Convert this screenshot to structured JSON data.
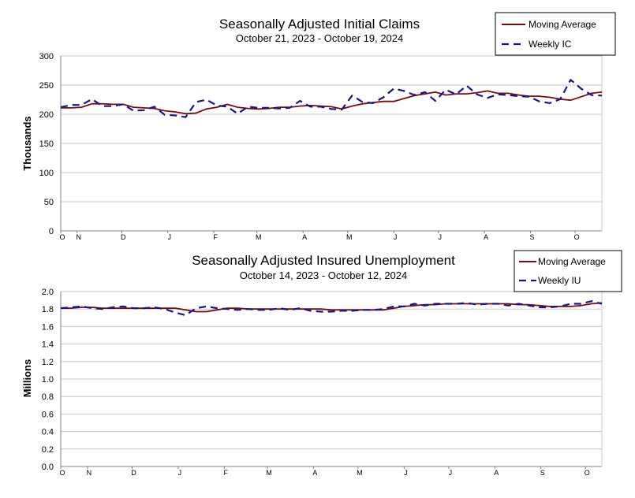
{
  "colors": {
    "moving_average": "#7a0c0c",
    "weekly": "#15158c",
    "grid": "#c8c8c8",
    "axis": "#808080",
    "legend_border": "#000000"
  },
  "chart_data": [
    {
      "type": "line",
      "title": "Seasonally Adjusted Initial Claims",
      "subtitle": "October 21, 2023 - October 19, 2024",
      "xlabel": "",
      "ylabel": "Thousands",
      "ylim": [
        0,
        300
      ],
      "yticks": [
        "0",
        "50",
        "100",
        "150",
        "200",
        "250",
        "300"
      ],
      "ytick_values": [
        0,
        50,
        100,
        150,
        200,
        250,
        300
      ],
      "x_start_date": "2023-10-21",
      "x_end_date": "2024-10-19",
      "xtick_labels": [
        "O",
        "N",
        "D",
        "J",
        "F",
        "M",
        "A",
        "M",
        "J",
        "J",
        "A",
        "S",
        "O"
      ],
      "xtick_dates": [
        "2023-10-21",
        "2023-11-01",
        "2023-12-01",
        "2024-01-01",
        "2024-02-01",
        "2024-03-01",
        "2024-04-01",
        "2024-05-01",
        "2024-06-01",
        "2024-07-01",
        "2024-08-01",
        "2024-09-01",
        "2024-10-01"
      ],
      "grid": true,
      "legend_position": "top-right",
      "series": [
        {
          "name": "Moving Average",
          "style": "solid",
          "values": [
            211,
            211,
            212,
            218,
            218,
            217,
            217,
            212,
            211,
            210,
            206,
            204,
            201,
            202,
            209,
            212,
            217,
            212,
            210,
            209,
            210,
            212,
            212,
            214,
            215,
            214,
            213,
            209,
            214,
            218,
            220,
            222,
            222,
            227,
            232,
            235,
            238,
            233,
            235,
            235,
            237,
            240,
            236,
            236,
            233,
            231,
            231,
            229,
            226,
            224,
            230,
            236,
            238
          ]
        },
        {
          "name": "Weekly IC",
          "style": "dashed",
          "values": [
            212,
            216,
            216,
            226,
            214,
            214,
            217,
            206,
            207,
            213,
            199,
            198,
            195,
            221,
            225,
            215,
            213,
            201,
            213,
            211,
            211,
            210,
            211,
            223,
            213,
            213,
            209,
            208,
            232,
            221,
            219,
            229,
            244,
            240,
            233,
            238,
            223,
            242,
            234,
            249,
            234,
            228,
            234,
            233,
            231,
            230,
            222,
            219,
            226,
            259,
            244,
            233,
            232
          ]
        }
      ]
    },
    {
      "type": "line",
      "title": "Seasonally Adjusted Insured Unemployment",
      "subtitle": "October 14, 2023 - October 12, 2024",
      "xlabel": "",
      "ylabel": "Millions",
      "ylim": [
        0.0,
        2.0
      ],
      "yticks": [
        "0.0",
        "0.2",
        "0.4",
        "0.6",
        "0.8",
        "1.0",
        "1.2",
        "1.4",
        "1.6",
        "1.8",
        "2.0"
      ],
      "ytick_values": [
        0.0,
        0.2,
        0.4,
        0.6,
        0.8,
        1.0,
        1.2,
        1.4,
        1.6,
        1.8,
        2.0
      ],
      "x_start_date": "2023-10-14",
      "x_end_date": "2024-10-12",
      "xtick_labels": [
        "O",
        "N",
        "D",
        "J",
        "F",
        "M",
        "A",
        "M",
        "J",
        "J",
        "A",
        "S",
        "O"
      ],
      "xtick_dates": [
        "2023-10-14",
        "2023-11-01",
        "2023-12-01",
        "2024-01-01",
        "2024-02-01",
        "2024-03-01",
        "2024-04-01",
        "2024-05-01",
        "2024-06-01",
        "2024-07-01",
        "2024-08-01",
        "2024-09-01",
        "2024-10-01"
      ],
      "grid": true,
      "legend_position": "top-right",
      "series": [
        {
          "name": "Moving Average",
          "style": "solid",
          "values": [
            1.81,
            1.81,
            1.82,
            1.82,
            1.81,
            1.81,
            1.81,
            1.81,
            1.81,
            1.81,
            1.81,
            1.81,
            1.79,
            1.77,
            1.77,
            1.79,
            1.81,
            1.81,
            1.8,
            1.8,
            1.8,
            1.8,
            1.8,
            1.8,
            1.8,
            1.8,
            1.79,
            1.79,
            1.79,
            1.79,
            1.79,
            1.79,
            1.81,
            1.83,
            1.84,
            1.85,
            1.85,
            1.86,
            1.86,
            1.86,
            1.86,
            1.86,
            1.86,
            1.86,
            1.85,
            1.85,
            1.84,
            1.83,
            1.83,
            1.83,
            1.84,
            1.86,
            1.87
          ]
        },
        {
          "name": "Weekly IU",
          "style": "dashed",
          "values": [
            1.81,
            1.82,
            1.83,
            1.81,
            1.8,
            1.82,
            1.83,
            1.81,
            1.81,
            1.82,
            1.8,
            1.76,
            1.73,
            1.81,
            1.83,
            1.81,
            1.8,
            1.79,
            1.8,
            1.79,
            1.79,
            1.81,
            1.79,
            1.81,
            1.78,
            1.77,
            1.77,
            1.78,
            1.78,
            1.79,
            1.79,
            1.8,
            1.83,
            1.83,
            1.86,
            1.84,
            1.86,
            1.86,
            1.86,
            1.87,
            1.85,
            1.86,
            1.86,
            1.84,
            1.86,
            1.84,
            1.82,
            1.82,
            1.83,
            1.86,
            1.86,
            1.89,
            1.86
          ]
        }
      ]
    }
  ]
}
